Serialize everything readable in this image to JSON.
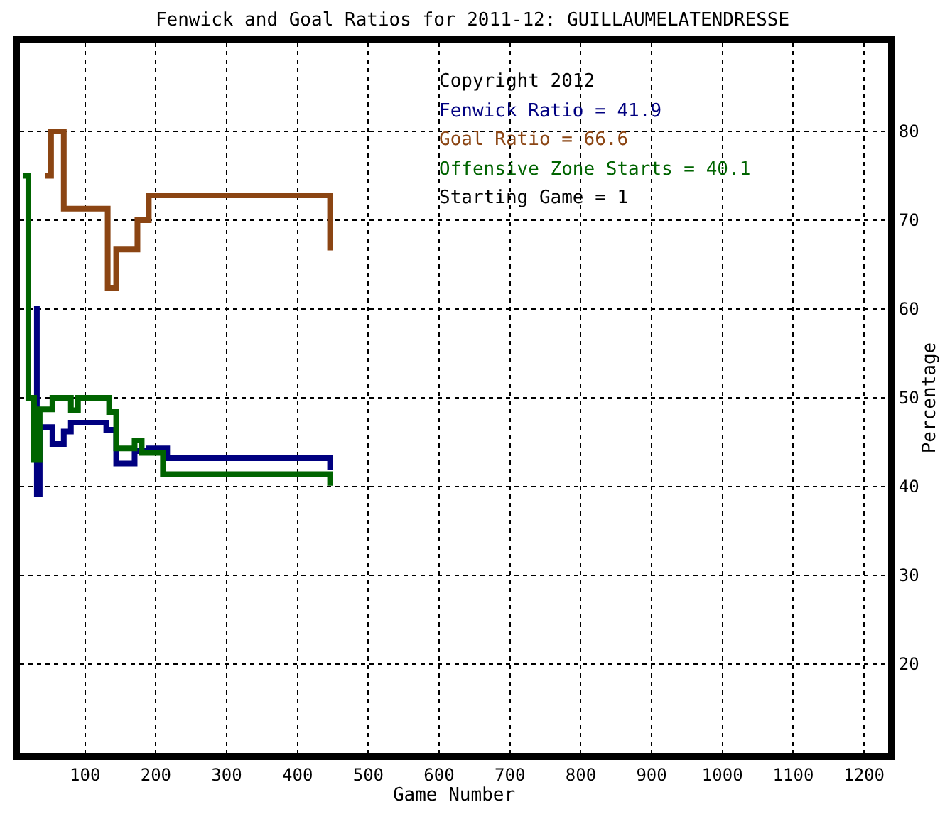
{
  "chart_data": {
    "type": "step",
    "title": "Fenwick and Goal Ratios for 2011-12: GUILLAUMELATENDRESSE",
    "xlabel": "Game Number",
    "ylabel": "Percentage",
    "xlim": [
      8,
      1234
    ],
    "xticks": [
      100,
      200,
      300,
      400,
      500,
      600,
      700,
      800,
      900,
      1000,
      1100,
      1200
    ],
    "ylim": [
      10,
      90
    ],
    "yticks": [
      20,
      30,
      40,
      50,
      60,
      70,
      80
    ],
    "grid": true,
    "line_style": "solid",
    "marker": "none",
    "series": [
      {
        "name": "Fenwick Ratio = 41.9",
        "color": "#000080",
        "x": [
          28,
          32,
          36,
          54,
          70,
          80,
          130,
          144,
          170,
          190,
          216,
          446
        ],
        "values": [
          60,
          39.2,
          46.7,
          44.8,
          46.2,
          47.2,
          46.4,
          42.6,
          44,
          44.3,
          43.2,
          41.9
        ]
      },
      {
        "name": "Goal Ratio = 66.6",
        "color": "#8b4513",
        "x": [
          44,
          52,
          70,
          132,
          144,
          174,
          190,
          446
        ],
        "values": [
          75,
          80,
          71.3,
          62.4,
          66.7,
          70,
          72.8,
          66.6
        ]
      },
      {
        "name": "Offensive Zone Starts = 40.1",
        "color": "#006400",
        "x": [
          12,
          20,
          28,
          36,
          54,
          80,
          90,
          134,
          144,
          170,
          180,
          210,
          446
        ],
        "values": [
          75,
          50,
          43,
          48.7,
          50,
          48.6,
          50,
          48.4,
          44.3,
          45.2,
          43.8,
          41.4,
          40.1
        ]
      }
    ],
    "annotations": [
      "Copyright 2012",
      "Starting Game = 1"
    ]
  }
}
